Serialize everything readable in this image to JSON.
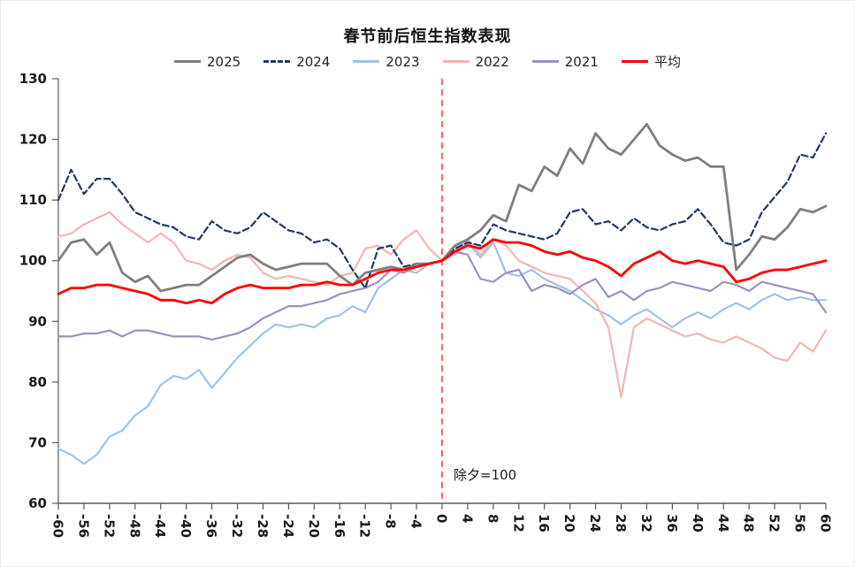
{
  "chart_data": {
    "type": "line",
    "title": "春节前后恒生指数表现",
    "annotation": "除夕=100",
    "xlim": [
      -60,
      60
    ],
    "ylim": [
      60,
      130
    ],
    "x_ticks": [
      -60,
      -56,
      -52,
      -48,
      -44,
      -40,
      -36,
      -32,
      -28,
      -24,
      -20,
      -16,
      -12,
      -8,
      -4,
      0,
      4,
      8,
      12,
      16,
      20,
      24,
      28,
      32,
      36,
      40,
      44,
      48,
      52,
      56,
      60
    ],
    "y_ticks": [
      60,
      70,
      80,
      90,
      100,
      110,
      120,
      130
    ],
    "vline_x": 0,
    "vline_color": "#ff4040",
    "axis_color": "#595959",
    "x": [
      -60,
      -58,
      -56,
      -54,
      -52,
      -50,
      -48,
      -46,
      -44,
      -42,
      -40,
      -38,
      -36,
      -34,
      -32,
      -30,
      -28,
      -26,
      -24,
      -22,
      -20,
      -18,
      -16,
      -14,
      -12,
      -10,
      -8,
      -6,
      -4,
      -2,
      0,
      2,
      4,
      6,
      8,
      10,
      12,
      14,
      16,
      18,
      20,
      22,
      24,
      26,
      28,
      30,
      32,
      34,
      36,
      38,
      40,
      42,
      44,
      46,
      48,
      50,
      52,
      54,
      56,
      58,
      60
    ],
    "series": [
      {
        "name": "2025",
        "color": "#7f7f7f",
        "dash": "solid",
        "width": 2.8,
        "values": [
          100,
          103,
          103.5,
          101,
          103,
          98,
          96.5,
          97.5,
          95,
          95.5,
          96,
          96,
          97.5,
          99,
          100.5,
          101,
          99.5,
          98.5,
          99,
          99.5,
          99.5,
          99.5,
          97.5,
          96,
          98,
          98.5,
          99,
          98.5,
          99.5,
          99.5,
          100,
          102.5,
          103.5,
          105,
          107.5,
          106.5,
          112.5,
          111.5,
          115.5,
          114,
          118.5,
          116,
          121,
          118.5,
          117.5,
          120,
          122.5,
          119,
          117.5,
          116.5,
          117,
          115.5,
          115.5,
          98.5,
          101,
          104,
          103.5,
          105.5,
          108.5,
          108,
          109
        ]
      },
      {
        "name": "2024",
        "color": "#203864",
        "dash": "dashed",
        "width": 2.2,
        "values": [
          110,
          115,
          111,
          113.5,
          113.5,
          111,
          108,
          107,
          106,
          105.5,
          104,
          103.5,
          106.5,
          105,
          104.5,
          105.5,
          108,
          106.5,
          105,
          104.5,
          103,
          103.5,
          102,
          98.5,
          95.5,
          102,
          102.5,
          99,
          99.5,
          99.5,
          100,
          102,
          103,
          102.5,
          106,
          105,
          104.5,
          104,
          103.5,
          104.5,
          108,
          108.5,
          106,
          106.5,
          105,
          107,
          105.5,
          105,
          106,
          106.5,
          108.5,
          106,
          103,
          102.5,
          103.5,
          108,
          110.5,
          113,
          117.5,
          117,
          121
        ]
      },
      {
        "name": "2023",
        "color": "#9dc3e6",
        "dash": "solid",
        "width": 2.2,
        "values": [
          69,
          68,
          66.5,
          68,
          71,
          72,
          74.5,
          76,
          79.5,
          81,
          80.5,
          82,
          79,
          81.5,
          84,
          86,
          88,
          89.5,
          89,
          89.5,
          89,
          90.5,
          91,
          92.5,
          91.5,
          95.5,
          97,
          98.5,
          98,
          99.5,
          100,
          101,
          103,
          100.5,
          103,
          98,
          97.5,
          98.5,
          97,
          96,
          95,
          93.5,
          92,
          91,
          89.5,
          91,
          92,
          90.5,
          89,
          90.5,
          91.5,
          90.5,
          92,
          93,
          92,
          93.5,
          94.5,
          93.5,
          94,
          93.5,
          93.5
        ]
      },
      {
        "name": "2022",
        "color": "#f5b5b0",
        "dash": "solid",
        "width": 2.2,
        "values": [
          104,
          104.5,
          106,
          107,
          108,
          106,
          104.5,
          103,
          104.5,
          103,
          100,
          99.5,
          98.5,
          100,
          101,
          100.5,
          98,
          97,
          97.5,
          97,
          96.5,
          96,
          97.5,
          98,
          102,
          102.5,
          101,
          103.5,
          105,
          102,
          100,
          101.5,
          103.5,
          101,
          103.5,
          102.5,
          100,
          99,
          98,
          97.5,
          97,
          95,
          93,
          89,
          77.5,
          89,
          90.5,
          89.5,
          88.5,
          87.5,
          88,
          87,
          86.5,
          87.5,
          86.5,
          85.5,
          84,
          83.5,
          86.5,
          85,
          88.5
        ]
      },
      {
        "name": "2021",
        "color": "#9e8fc0",
        "dash": "solid",
        "width": 2.2,
        "values": [
          87.5,
          87.5,
          88,
          88,
          88.5,
          87.5,
          88.5,
          88.5,
          88,
          87.5,
          87.5,
          87.5,
          87,
          87.5,
          88,
          89,
          90.5,
          91.5,
          92.5,
          92.5,
          93,
          93.5,
          94.5,
          95,
          95.5,
          96.5,
          98.5,
          98,
          99,
          99.5,
          100,
          101.5,
          101,
          97,
          96.5,
          98,
          98.5,
          95,
          96,
          95.5,
          94.5,
          96,
          97,
          94,
          95,
          93.5,
          95,
          95.5,
          96.5,
          96,
          95.5,
          95,
          96.5,
          96,
          95,
          96.5,
          96,
          95.5,
          95,
          94.5,
          91.5
        ]
      },
      {
        "name": "平均",
        "color": "#ff0000",
        "dash": "solid",
        "width": 2.8,
        "values": [
          94.5,
          95.5,
          95.5,
          96,
          96,
          95.5,
          95,
          94.5,
          93.5,
          93.5,
          93,
          93.5,
          93,
          94.5,
          95.5,
          96,
          95.5,
          95.5,
          95.5,
          96,
          96,
          96.5,
          96,
          96,
          97,
          98,
          98.5,
          98.5,
          99,
          99.5,
          100,
          101.5,
          102.5,
          102,
          103.5,
          103,
          103,
          102.5,
          101.5,
          101,
          101.5,
          100.5,
          100,
          99,
          97.5,
          99.5,
          100.5,
          101.5,
          100,
          99.5,
          100,
          99.5,
          99,
          96.5,
          97,
          98,
          98.5,
          98.5,
          99,
          99.5,
          100
        ]
      }
    ]
  }
}
